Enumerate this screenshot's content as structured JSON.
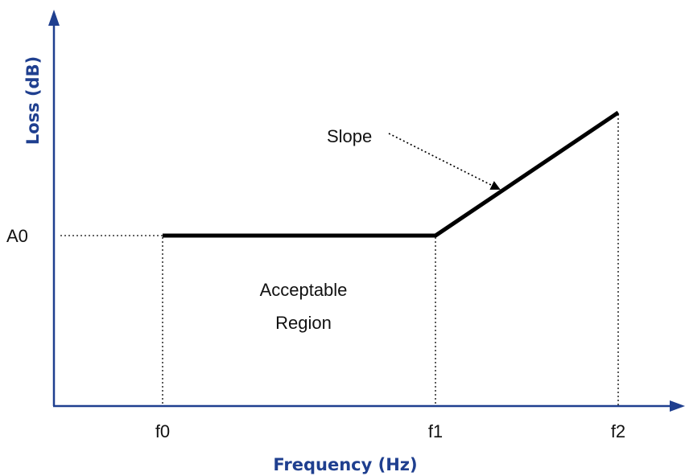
{
  "axes": {
    "x_title": "Frequency (Hz)",
    "y_title": "Loss (dB)",
    "color": "#1f3f8f",
    "x_ticks": [
      "f0",
      "f1",
      "f2"
    ],
    "y_ticks": [
      "A0"
    ]
  },
  "annotations": {
    "slope_label": "Slope",
    "region_line1": "Acceptable",
    "region_line2": "Region"
  },
  "curve_color": "#000000"
}
